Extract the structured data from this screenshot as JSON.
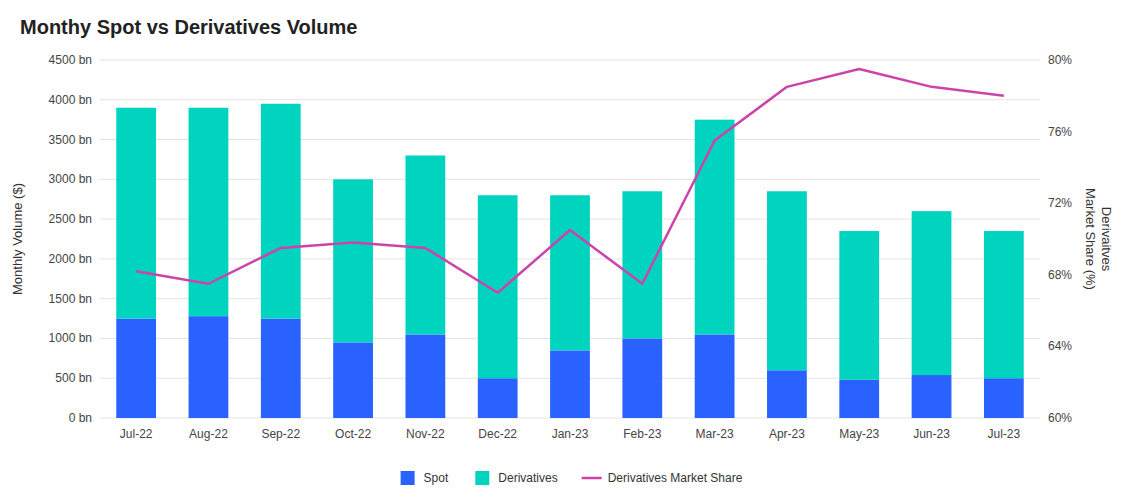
{
  "chart_data": {
    "type": "bar",
    "title": "Monthy Spot vs Derivatives Volume",
    "ylabel": "Monthly Volume ($)",
    "y2label": "Derivaitves\nMarket Share (%)",
    "categories": [
      "Jul-22",
      "Aug-22",
      "Sep-22",
      "Oct-22",
      "Nov-22",
      "Dec-22",
      "Jan-23",
      "Feb-23",
      "Mar-23",
      "Apr-23",
      "May-23",
      "Jun-23",
      "Jul-23"
    ],
    "stacked": true,
    "grid": true,
    "legend": "bottom",
    "series": [
      {
        "name": "Spot",
        "color": "#2962FF",
        "values": [
          1250,
          1280,
          1250,
          950,
          1050,
          500,
          850,
          1000,
          1050,
          600,
          480,
          540,
          500
        ]
      },
      {
        "name": "Derivatives",
        "color": "#00D4BF",
        "values": [
          2650,
          2620,
          2700,
          2050,
          2250,
          2300,
          1950,
          1850,
          2700,
          2250,
          1870,
          2060,
          1850
        ]
      },
      {
        "name": "Derivatives Market Share",
        "type": "line",
        "axis": "y2",
        "color": "#CC44AA",
        "values": [
          68.2,
          67.5,
          69.5,
          69.8,
          69.5,
          67.0,
          70.5,
          67.5,
          75.5,
          78.5,
          79.5,
          78.5,
          78.0
        ]
      }
    ],
    "ylim": [
      0,
      4500
    ],
    "yticks": [
      {
        "value": 0,
        "label": "0 bn"
      },
      {
        "value": 500,
        "label": "500 bn"
      },
      {
        "value": 1000,
        "label": "1000 bn"
      },
      {
        "value": 1500,
        "label": "1500 bn"
      },
      {
        "value": 2000,
        "label": "2000 bn"
      },
      {
        "value": 2500,
        "label": "2500 bn"
      },
      {
        "value": 3000,
        "label": "3000 bn"
      },
      {
        "value": 3500,
        "label": "3500 bn"
      },
      {
        "value": 4000,
        "label": "4000 bn"
      },
      {
        "value": 4500,
        "label": "4500 bn"
      }
    ],
    "y2lim": [
      60,
      80
    ],
    "y2ticks": [
      {
        "value": 60,
        "label": "60%"
      },
      {
        "value": 64,
        "label": "64%"
      },
      {
        "value": 68,
        "label": "68%"
      },
      {
        "value": 72,
        "label": "72%"
      },
      {
        "value": 76,
        "label": "76%"
      },
      {
        "value": 80,
        "label": "80%"
      }
    ]
  }
}
